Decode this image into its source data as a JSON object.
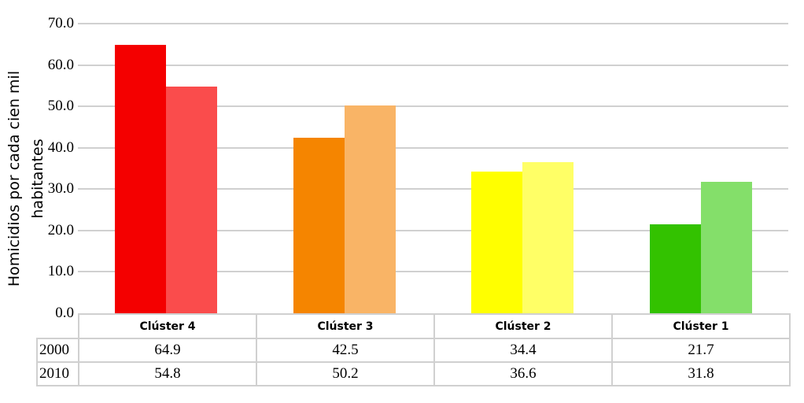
{
  "chart_data": {
    "type": "bar",
    "title": "",
    "xlabel": "",
    "ylabel": "Homicidios por cada cien mil habitantes",
    "ylim": [
      0,
      70
    ],
    "yticks": [
      "0.0",
      "10.0",
      "20.0",
      "30.0",
      "40.0",
      "50.0",
      "60.0",
      "70.0"
    ],
    "grid": true,
    "legend_position": "data table below chart",
    "categories": [
      "Clúster 4",
      "Clúster 3",
      "Clúster 2",
      "Clúster 1"
    ],
    "series": [
      {
        "name": "2000",
        "values": [
          64.9,
          42.5,
          34.4,
          21.7
        ],
        "colors": [
          "#f40000",
          "#f58500",
          "#ffff00",
          "#33c200"
        ]
      },
      {
        "name": "2010",
        "values": [
          54.8,
          50.2,
          36.6,
          31.8
        ],
        "colors": [
          "#fa4c4c",
          "#f9b466",
          "#ffff66",
          "#84df6a"
        ]
      }
    ],
    "table": {
      "rows": [
        {
          "label": "2000",
          "values": [
            "64.9",
            "42.5",
            "34.4",
            "21.7"
          ]
        },
        {
          "label": "2010",
          "values": [
            "54.8",
            "50.2",
            "36.6",
            "31.8"
          ]
        }
      ]
    }
  }
}
